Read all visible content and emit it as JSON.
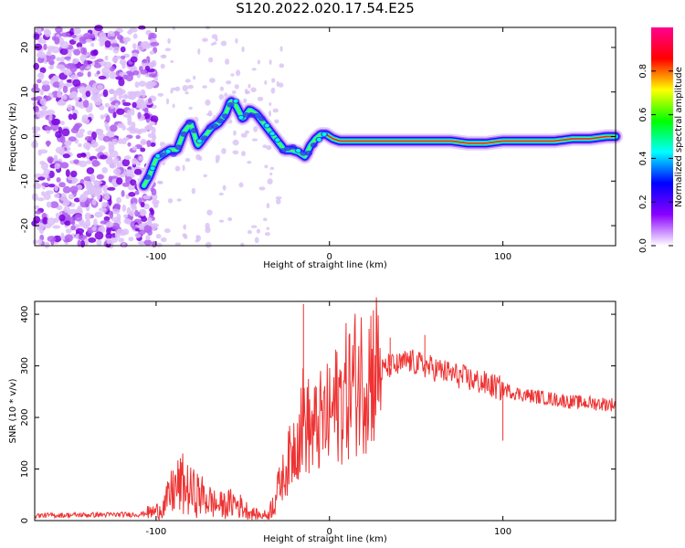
{
  "page": {
    "title": "S120.2022.020.17.54.E25"
  },
  "chart_data": [
    {
      "type": "heatmap",
      "xlabel": "Height of straight line (km)",
      "ylabel": "Frequency (Hz)",
      "xlim": [
        -170,
        165
      ],
      "ylim": [
        -24.5,
        24.5
      ],
      "xticks": [
        -100,
        0,
        100
      ],
      "yticks": [
        -20,
        -10,
        0,
        10,
        20
      ],
      "colorbar": {
        "label": "Normalized spectral amplitude",
        "range": [
          0.0,
          1.0
        ],
        "ticks": [
          0.0,
          0.2,
          0.4,
          0.6,
          0.8
        ],
        "colors": [
          "#ffffff",
          "#8a00ff",
          "#0000ff",
          "#00ffff",
          "#00ff00",
          "#ffff00",
          "#ff0000",
          "#ff0090"
        ]
      },
      "ridge": {
        "x": [
          -107,
          -104,
          -100,
          -96,
          -92,
          -88,
          -84,
          -80,
          -76,
          -72,
          -68,
          -64,
          -60,
          -57,
          -54,
          -50,
          -46,
          -42,
          -38,
          -34,
          -30,
          -26,
          -22,
          -18,
          -14,
          -11,
          -8,
          -5,
          -2,
          2,
          6,
          10,
          20,
          30,
          40,
          50,
          60,
          70,
          80,
          90,
          100,
          110,
          120,
          130,
          140,
          150,
          160,
          165
        ],
        "y": [
          -11,
          -9,
          -5,
          -4,
          -3,
          -3,
          1,
          3,
          -2,
          0,
          2,
          3,
          5,
          8,
          7,
          4,
          6,
          5,
          3,
          1,
          -1,
          -3,
          -3,
          -3.5,
          -4.5,
          -2,
          -0.5,
          0.5,
          0.5,
          -0.5,
          -1,
          -1,
          -1,
          -1,
          -1,
          -1,
          -1,
          -1,
          -1.5,
          -1.5,
          -1,
          -1,
          -1,
          -1,
          -0.5,
          -0.5,
          0,
          0
        ]
      }
    },
    {
      "type": "line",
      "xlabel": "Height of straight line (km)",
      "ylabel": "SNR (10 * v/v)",
      "xlim": [
        -170,
        165
      ],
      "ylim": [
        0,
        425
      ],
      "xticks": [
        -100,
        0,
        100
      ],
      "yticks": [
        0,
        100,
        200,
        300,
        400
      ],
      "color": "#ee3333",
      "envelope": {
        "x": [
          -170,
          -110,
          -100,
          -95,
          -90,
          -85,
          -80,
          -75,
          -70,
          -65,
          -60,
          -55,
          -50,
          -45,
          -40,
          -35,
          -30,
          -25,
          -20,
          -15,
          -10,
          -5,
          0,
          5,
          10,
          15,
          20,
          25,
          30,
          35,
          40,
          45,
          50,
          55,
          60,
          65,
          70,
          80,
          90,
          100,
          110,
          120,
          130,
          140,
          150,
          160,
          165
        ],
        "y": [
          10,
          12,
          18,
          30,
          60,
          70,
          55,
          50,
          40,
          30,
          30,
          35,
          25,
          15,
          10,
          12,
          60,
          100,
          150,
          200,
          170,
          190,
          200,
          230,
          250,
          270,
          280,
          300,
          290,
          300,
          300,
          310,
          305,
          300,
          295,
          290,
          285,
          275,
          265,
          255,
          245,
          240,
          235,
          230,
          228,
          226,
          225
        ]
      },
      "spikes": [
        {
          "x": -15,
          "y": 420
        },
        {
          "x": 55,
          "y": 360
        },
        {
          "x": 100,
          "y": 155
        },
        {
          "x": 35,
          "y": 355
        }
      ]
    }
  ]
}
